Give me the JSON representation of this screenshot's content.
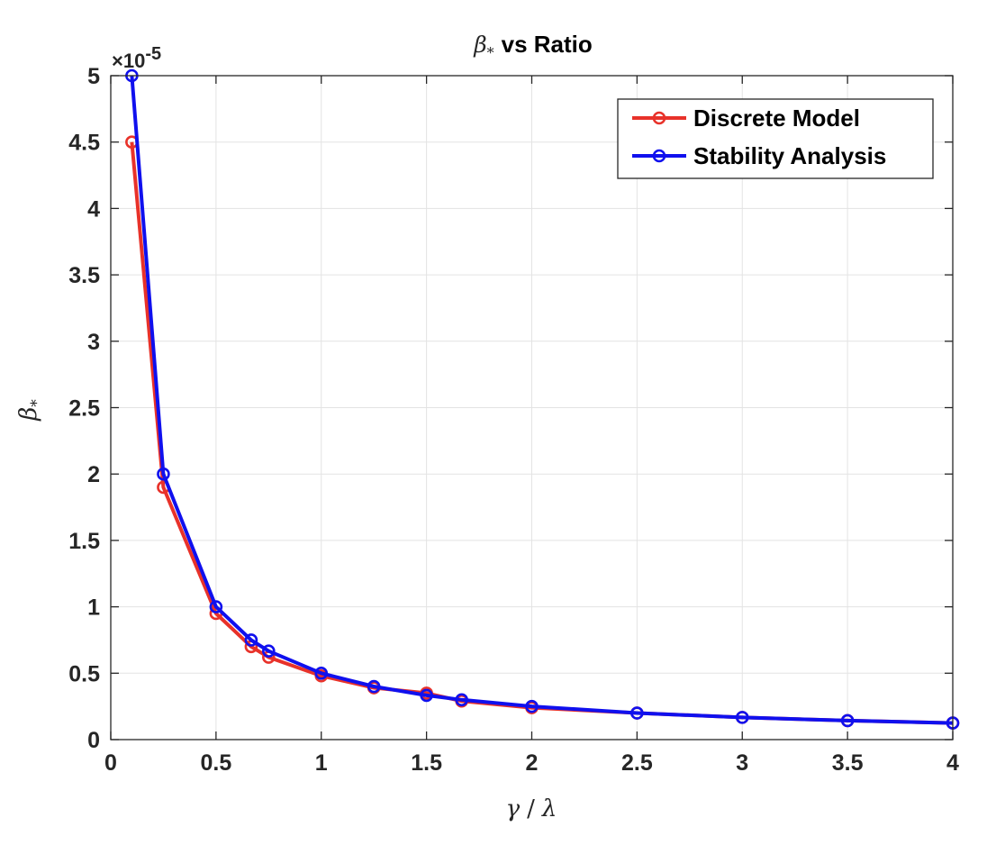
{
  "chart_data": {
    "type": "line",
    "title": {
      "symbol": "β",
      "subscript": "*",
      "text": "vs Ratio"
    },
    "xlabel": {
      "gamma": "γ",
      "slash": "/",
      "lambda": "λ"
    },
    "ylabel": {
      "symbol": "β",
      "subscript": "*"
    },
    "y_exponent": {
      "times": "×",
      "base": "10",
      "exp": "-5"
    },
    "xlim": [
      0,
      4
    ],
    "ylim": [
      0,
      5
    ],
    "xticks": [
      0,
      0.5,
      1,
      1.5,
      2,
      2.5,
      3,
      3.5,
      4
    ],
    "xtick_labels": [
      "0",
      "0.5",
      "1",
      "1.5",
      "2",
      "2.5",
      "3",
      "3.5",
      "4"
    ],
    "yticks": [
      0,
      0.5,
      1,
      1.5,
      2,
      2.5,
      3,
      3.5,
      4,
      4.5,
      5
    ],
    "ytick_labels": [
      "0",
      "0.5",
      "1",
      "1.5",
      "2",
      "2.5",
      "3",
      "3.5",
      "4",
      "4.5",
      "5"
    ],
    "grid": true,
    "legend_position": "top-right",
    "series": [
      {
        "name": "Discrete Model",
        "color": "#e8322a",
        "x": [
          0.1,
          0.25,
          0.5,
          0.667,
          0.75,
          1,
          1.25,
          1.5,
          1.667,
          2,
          2.5,
          3,
          3.5,
          4
        ],
        "y": [
          4.5,
          1.9,
          0.95,
          0.7,
          0.62,
          0.48,
          0.39,
          0.35,
          0.29,
          0.24,
          0.2,
          0.167,
          0.143,
          0.125
        ]
      },
      {
        "name": "Stability Analysis",
        "color": "#1010ee",
        "x": [
          0.1,
          0.25,
          0.5,
          0.667,
          0.75,
          1,
          1.25,
          1.5,
          1.667,
          2,
          2.5,
          3,
          3.5,
          4
        ],
        "y": [
          5.0,
          2.0,
          1.0,
          0.75,
          0.667,
          0.5,
          0.4,
          0.333,
          0.3,
          0.25,
          0.2,
          0.167,
          0.143,
          0.125
        ]
      }
    ]
  }
}
